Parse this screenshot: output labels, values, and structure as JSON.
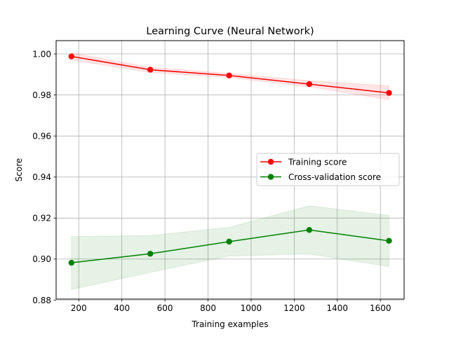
{
  "chart_data": {
    "type": "line",
    "title": "Learning Curve (Neural Network)",
    "xlabel": "Training examples",
    "ylabel": "Score",
    "xlim": [
      95,
      1710
    ],
    "ylim": [
      0.8805,
      1.0065
    ],
    "x_ticks": [
      {
        "value": 200,
        "label": "200"
      },
      {
        "value": 400,
        "label": "400"
      },
      {
        "value": 600,
        "label": "600"
      },
      {
        "value": 800,
        "label": "800"
      },
      {
        "value": 1000,
        "label": "1000"
      },
      {
        "value": 1200,
        "label": "1200"
      },
      {
        "value": 1400,
        "label": "1400"
      },
      {
        "value": 1600,
        "label": "1600"
      }
    ],
    "y_ticks": [
      {
        "value": 0.88,
        "label": "0.88"
      },
      {
        "value": 0.9,
        "label": "0.90"
      },
      {
        "value": 0.92,
        "label": "0.92"
      },
      {
        "value": 0.94,
        "label": "0.94"
      },
      {
        "value": 0.96,
        "label": "0.96"
      },
      {
        "value": 0.98,
        "label": "0.98"
      },
      {
        "value": 1.0,
        "label": "1.00"
      }
    ],
    "grid": true,
    "legend_position": "center-right",
    "x": [
      166,
      532,
      898,
      1270,
      1640
    ],
    "series": [
      {
        "name": "Training score",
        "color": "#ff0000",
        "values": [
          0.9988,
          0.9923,
          0.9895,
          0.9853,
          0.981
        ],
        "lower": [
          0.997,
          0.991,
          0.9885,
          0.984,
          0.9777
        ],
        "upper": [
          1.0005,
          0.9935,
          0.9905,
          0.987,
          0.9845
        ]
      },
      {
        "name": "Cross-validation score",
        "color": "#008000",
        "values": [
          0.8982,
          0.9026,
          0.9085,
          0.9142,
          0.9089
        ],
        "lower": [
          0.8851,
          0.8935,
          0.9015,
          0.9025,
          0.8963
        ],
        "upper": [
          0.911,
          0.9115,
          0.9155,
          0.926,
          0.9213
        ]
      }
    ]
  }
}
